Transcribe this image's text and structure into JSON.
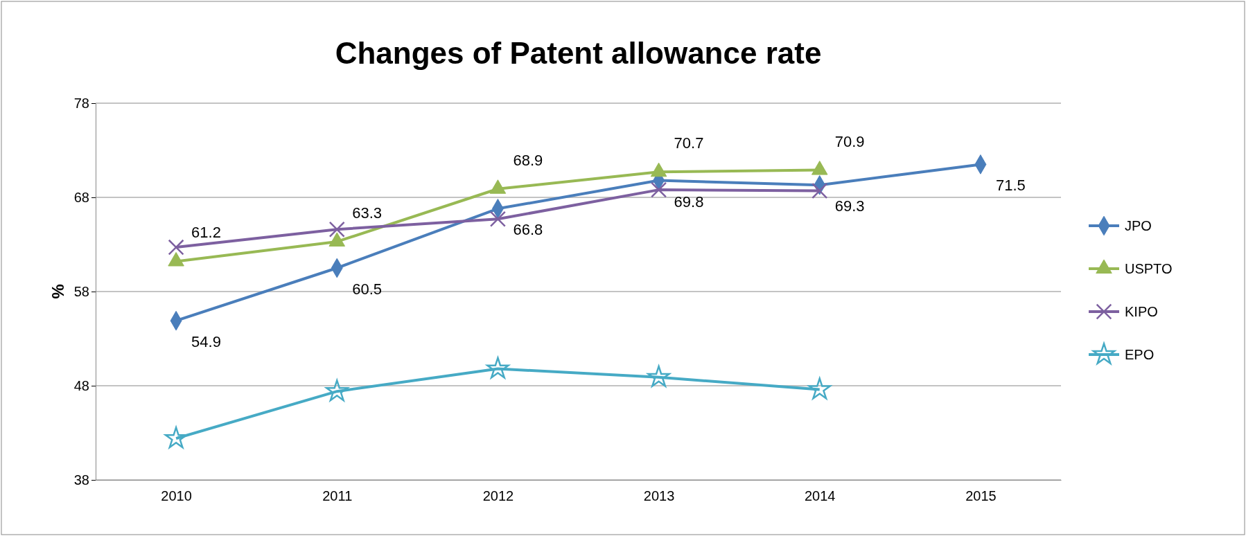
{
  "chart_data": {
    "type": "line",
    "title": "Changes of Patent allowance rate",
    "ylabel": "%",
    "categories": [
      "2010",
      "2011",
      "2012",
      "2013",
      "2014",
      "2015"
    ],
    "series": [
      {
        "name": "JPO",
        "color": "#4a7ebb",
        "marker": "diamond",
        "values": [
          54.9,
          60.5,
          66.8,
          69.8,
          69.3,
          71.5
        ],
        "value_labels": [
          "54.9",
          "60.5",
          "66.8",
          "69.8",
          "69.3",
          "71.5"
        ]
      },
      {
        "name": "USPTO",
        "color": "#98b954",
        "marker": "triangle",
        "values": [
          61.2,
          63.3,
          68.9,
          70.7,
          70.9,
          null
        ],
        "value_labels": [
          "61.2",
          "63.3",
          "68.9",
          "70.7",
          "70.9",
          null
        ]
      },
      {
        "name": "KIPO",
        "color": "#7d60a0",
        "marker": "cross",
        "values": [
          62.7,
          64.6,
          65.7,
          68.8,
          68.7,
          null
        ]
      },
      {
        "name": "EPO",
        "color": "#46aac5",
        "marker": "star",
        "values": [
          42.4,
          47.4,
          49.8,
          48.9,
          47.6,
          null
        ]
      }
    ],
    "ylim": [
      38,
      78
    ],
    "yticks": [
      38,
      48,
      58,
      68,
      78
    ],
    "grid": "y",
    "legend": "right",
    "line_style": "solid"
  }
}
